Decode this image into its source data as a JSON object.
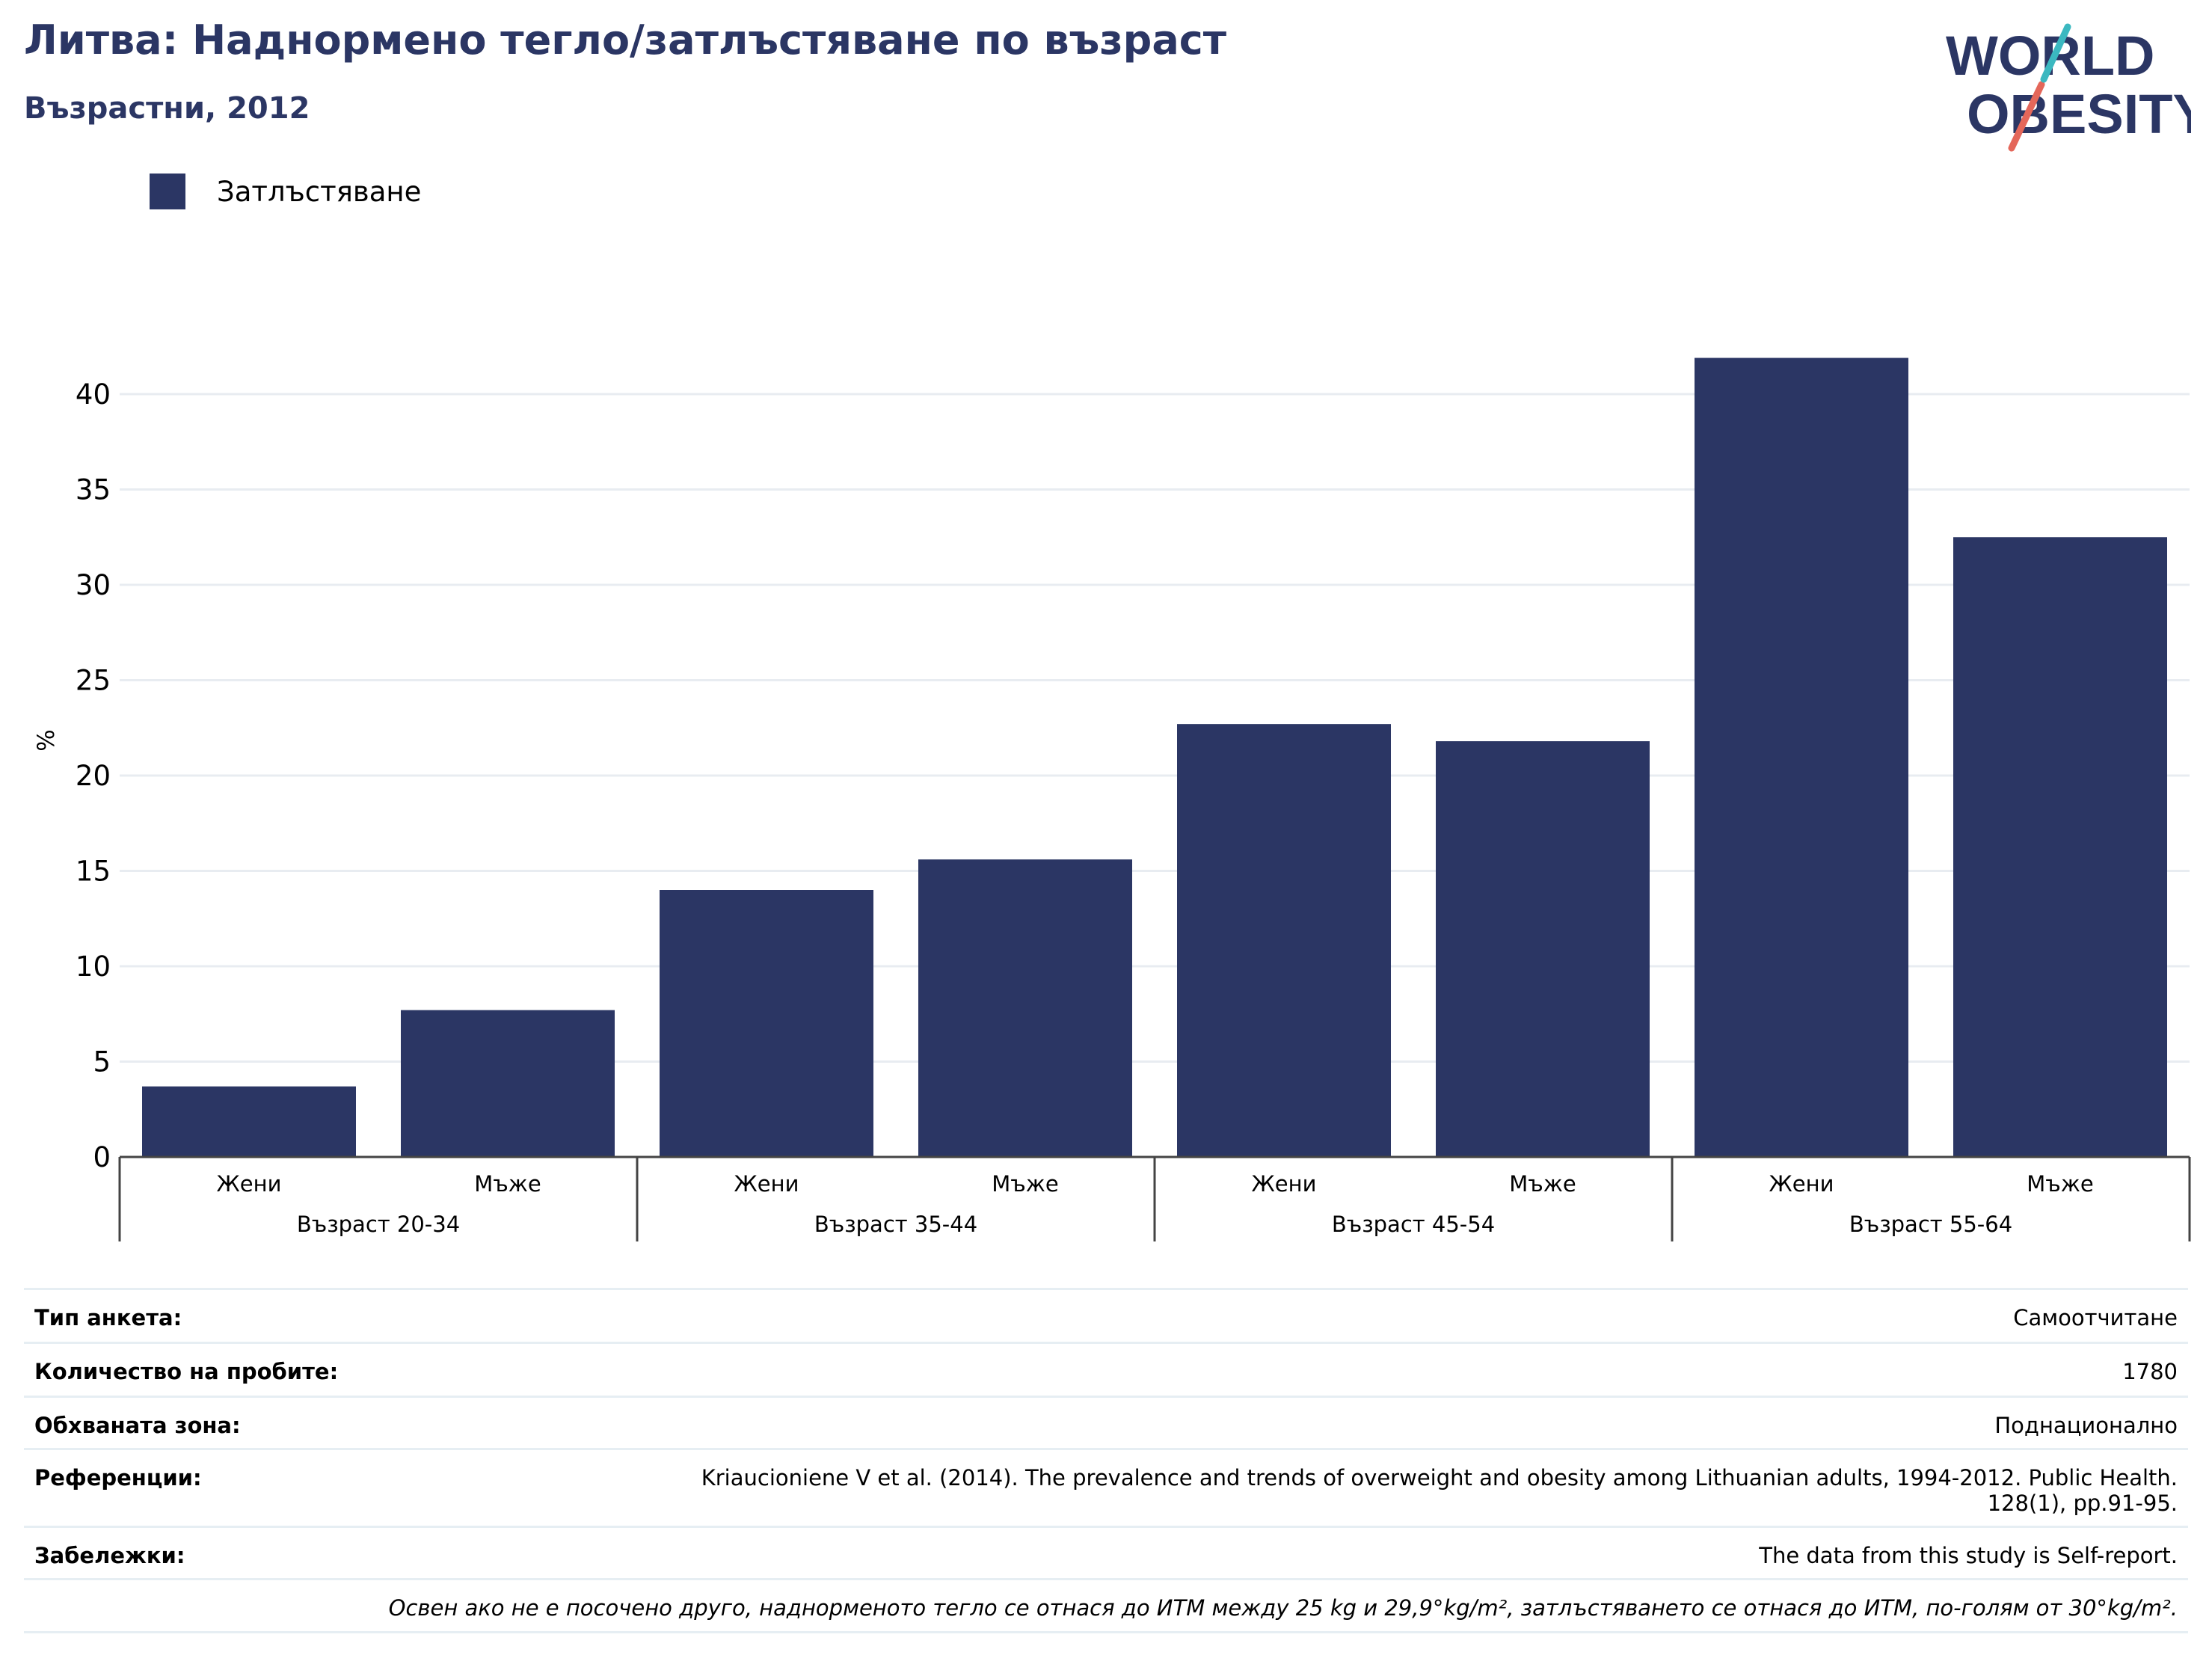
{
  "header": {
    "title": "Литва: Наднормено тегло/затлъстяване по възраст",
    "subtitle": "Възрастни, 2012"
  },
  "logo": {
    "line1": "WORLD",
    "line2": "OBESITY"
  },
  "colors": {
    "bar": "#2b3664",
    "title": "#2b3664",
    "grid": "#e8ecf1",
    "logo_teal": "#3bb8c0",
    "logo_red": "#e4675a"
  },
  "chart_data": {
    "type": "bar",
    "legend": {
      "label": "Затлъстяване",
      "placement": "top-left"
    },
    "ylabel": "%",
    "ylim": [
      0,
      45
    ],
    "yticks": [
      "0",
      "5",
      "10",
      "15",
      "20",
      "25",
      "30",
      "35",
      "40"
    ],
    "grid": true,
    "groups": [
      {
        "label": "Възраст 20-34",
        "categories": [
          "Жени",
          "Мъже"
        ]
      },
      {
        "label": "Възраст 35-44",
        "categories": [
          "Жени",
          "Мъже"
        ]
      },
      {
        "label": "Възраст 45-54",
        "categories": [
          "Жени",
          "Мъже"
        ]
      },
      {
        "label": "Възраст 55-64",
        "categories": [
          "Жени",
          "Мъже"
        ]
      }
    ],
    "series": [
      {
        "name": "Затлъстяване",
        "values": [
          3.7,
          7.7,
          14.0,
          15.6,
          22.7,
          21.8,
          41.9,
          32.5
        ]
      }
    ]
  },
  "info": {
    "survey_type": {
      "label": "Тип анкета:",
      "value": "Самоотчитане"
    },
    "sample_size": {
      "label": "Количество на пробите:",
      "value": "1780"
    },
    "coverage": {
      "label": "Обхваната зона:",
      "value": "Поднационално"
    },
    "references": {
      "label": "Референции:",
      "line1": "Kriaucioniene V et al. (2014). The prevalence and trends of overweight and obesity among Lithuanian adults, 1994-2012. Public Health.",
      "line2": "128(1), pp.91-95."
    },
    "notes": {
      "label": "Забележки:",
      "value": "The data from this study is Self-report."
    },
    "footnote": "Освен ако не е посочено друго, наднорменото тегло се отнася до ИТМ между 25 kg и 29,9°kg/m², затлъстяването се отнася до ИТМ, по-голям от 30°kg/m²."
  }
}
